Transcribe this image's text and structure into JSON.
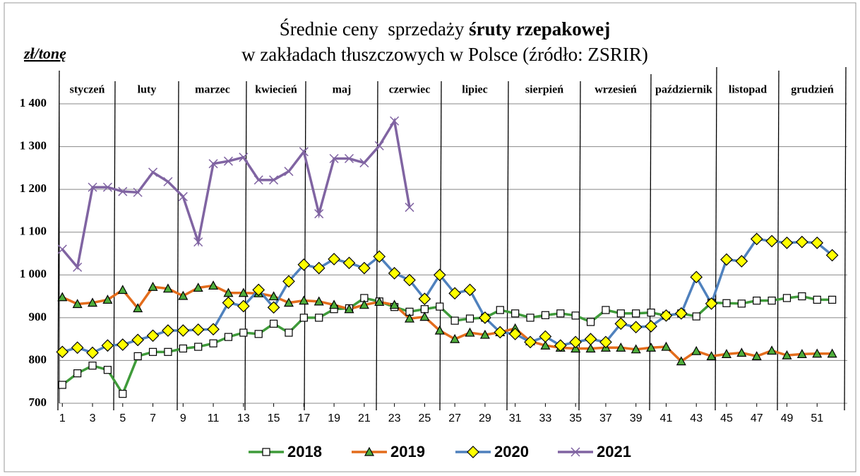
{
  "chart_data": {
    "type": "line",
    "title": "Średnie ceny  sprzedaży",
    "title_bold": "śruty rzepakowej",
    "subtitle": "w zakładach tłuszczowych w Polsce  (źródło: ZSRIR)",
    "y_label": "zł/tonę",
    "months": [
      "styczeń",
      "luty",
      "marzec",
      "kwiecień",
      "maj",
      "czerwiec",
      "lipiec",
      "sierpień",
      "wrzesień",
      "październik",
      "listopad",
      "grudzień"
    ],
    "x": [
      1,
      2,
      3,
      4,
      5,
      6,
      7,
      8,
      9,
      10,
      11,
      12,
      13,
      14,
      15,
      16,
      17,
      18,
      19,
      20,
      21,
      22,
      23,
      24,
      25,
      26,
      27,
      28,
      29,
      30,
      31,
      32,
      33,
      34,
      35,
      36,
      37,
      38,
      39,
      40,
      41,
      42,
      43,
      44,
      45,
      46,
      47,
      48,
      49,
      50,
      51,
      52
    ],
    "xlim": [
      0.8,
      53
    ],
    "xticks": [
      1,
      3,
      5,
      7,
      9,
      11,
      13,
      15,
      17,
      19,
      21,
      23,
      25,
      27,
      29,
      31,
      33,
      35,
      37,
      39,
      41,
      43,
      45,
      47,
      49,
      51
    ],
    "ylim": [
      700,
      1400
    ],
    "yticks": [
      700,
      800,
      900,
      {
        "value": 1000,
        "label": "1 000"
      },
      {
        "value": 1100,
        "label": "1 100"
      },
      {
        "value": 1200,
        "label": "1 200"
      },
      {
        "value": 1300,
        "label": "1 300"
      },
      {
        "value": 1400,
        "label": "1 400"
      }
    ],
    "grid": true,
    "legend": "bottom",
    "series": [
      {
        "name": "2018",
        "color": "#3f9b3a",
        "marker": "square",
        "marker_color": "#ffffff",
        "values": [
          743,
          770,
          788,
          778,
          722,
          810,
          820,
          820,
          828,
          832,
          840,
          855,
          865,
          862,
          886,
          865,
          900,
          900,
          920,
          922,
          946,
          938,
          925,
          914,
          920,
          926,
          893,
          898,
          900,
          918,
          910,
          900,
          906,
          910,
          905,
          890,
          918,
          910,
          910,
          912,
          905,
          910,
          903,
          935,
          934,
          933,
          940,
          940,
          946,
          950,
          942,
          942
        ]
      },
      {
        "name": "2019",
        "color": "#e36c1c",
        "marker": "triangle",
        "marker_color": "#4fae3c",
        "values": [
          948,
          932,
          935,
          942,
          965,
          922,
          972,
          968,
          951,
          970,
          975,
          958,
          958,
          957,
          950,
          935,
          940,
          938,
          930,
          920,
          930,
          937,
          930,
          898,
          902,
          870,
          850,
          865,
          860,
          866,
          875,
          845,
          835,
          830,
          828,
          828,
          830,
          830,
          826,
          830,
          832,
          798,
          822,
          810,
          815,
          818,
          810,
          823,
          812,
          815,
          816,
          816
        ]
      },
      {
        "name": "2020",
        "color": "#4f81bd",
        "marker": "diamond",
        "marker_color": "#ffff00",
        "values": [
          820,
          830,
          818,
          835,
          837,
          848,
          858,
          870,
          870,
          872,
          873,
          935,
          927,
          965,
          924,
          985,
          1024,
          1016,
          1037,
          1028,
          1016,
          1043,
          1004,
          988,
          944,
          1000,
          957,
          965,
          900,
          866,
          862,
          843,
          856,
          835,
          843,
          850,
          843,
          886,
          878,
          880,
          905,
          910,
          995,
          933,
          1036,
          1032,
          1084,
          1079,
          1075,
          1077,
          1075,
          1046
        ]
      },
      {
        "name": "2021",
        "color": "#8064a2",
        "marker": "x",
        "marker_color": "#8064a2",
        "values": [
          1060,
          1018,
          1205,
          1205,
          1195,
          1193,
          1240,
          1218,
          1183,
          1077,
          1260,
          1266,
          1275,
          1222,
          1222,
          1242,
          1288,
          1143,
          1272,
          1272,
          1262,
          1302,
          1360,
          1158,
          null,
          null,
          null,
          null,
          null,
          null,
          null,
          null,
          null,
          null,
          null,
          null,
          null,
          null,
          null,
          null,
          null,
          null,
          null,
          null,
          null,
          null,
          null,
          null,
          null,
          null,
          null,
          null
        ]
      }
    ]
  }
}
